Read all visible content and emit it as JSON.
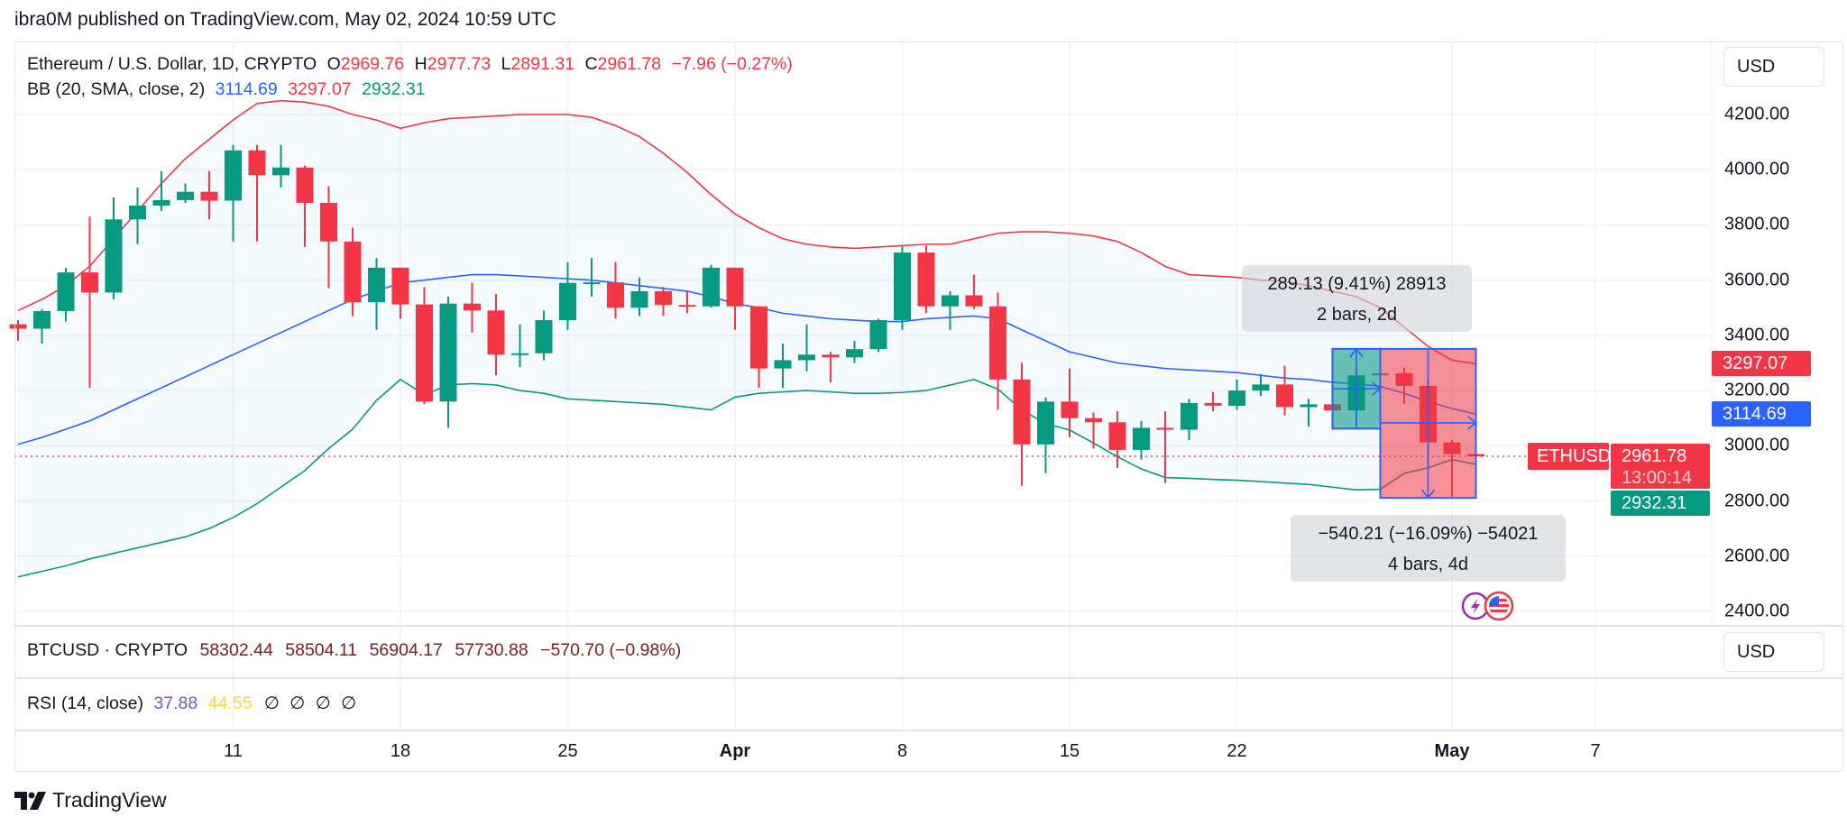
{
  "header": {
    "publisher_line": "ibra0M published on TradingView.com, May 02, 2024 10:59 UTC"
  },
  "legend": {
    "symbol": "Ethereum / U.S. Dollar, 1D, CRYPTO",
    "o_label": "O",
    "o": "2969.76",
    "h_label": "H",
    "h": "2977.73",
    "l_label": "L",
    "l": "2891.31",
    "c_label": "C",
    "c": "2961.78",
    "change": "−7.96 (−0.27%)",
    "bb_label": "BB (20, SMA, close, 2)",
    "bb_basis": "3114.69",
    "bb_upper": "3297.07",
    "bb_lower": "2932.31"
  },
  "currency_button": "USD",
  "btc_pane": {
    "label": "BTCUSD · CRYPTO",
    "open": "58302.44",
    "high": "58504.11",
    "low": "56904.17",
    "close": "57730.88",
    "change": "−570.70 (−0.98%)",
    "currency_button": "USD"
  },
  "rsi_pane": {
    "label": "RSI (14, close)",
    "rsi": "37.88",
    "ma": "44.55",
    "na": [
      "∅",
      "∅",
      "∅",
      "∅"
    ]
  },
  "price_labels": {
    "upper": "3297.07",
    "basis": "3114.69",
    "symbol": "ETHUSD",
    "last": "2961.78",
    "countdown": "13:00:14",
    "lower": "2932.31"
  },
  "measure_tooltips": [
    {
      "line1": "289.13 (9.41%) 28913",
      "line2": "2 bars, 2d"
    },
    {
      "line1": "−540.21 (−16.09%) −54021",
      "line2": "4 bars, 4d"
    }
  ],
  "footer": {
    "brand": "TradingView"
  },
  "colors": {
    "up": "#089981",
    "down": "#f23645",
    "basis": "#2962ff",
    "upper": "#f23645",
    "lower": "#089981",
    "rsi": "#7e57c2",
    "rsi_ma": "#fdd835"
  },
  "events": [
    {
      "icon": "lightning-icon"
    },
    {
      "icon": "us-flag-icon"
    }
  ],
  "chart_data": {
    "type": "candlestick",
    "title": "Ethereum / U.S. Dollar, 1D, CRYPTO",
    "start_date": "2024-03-02",
    "ylim": [
      2350,
      4300
    ],
    "y_ticks": [
      "4200.00",
      "4000.00",
      "3800.00",
      "3600.00",
      "3400.00",
      "3200.00",
      "3000.00",
      "2800.00",
      "2600.00",
      "2400.00"
    ],
    "x_ticks": [
      {
        "label": "11",
        "date": "2024-03-11",
        "bold": false
      },
      {
        "label": "18",
        "date": "2024-03-18",
        "bold": false
      },
      {
        "label": "25",
        "date": "2024-03-25",
        "bold": false
      },
      {
        "label": "Apr",
        "date": "2024-04-01",
        "bold": true
      },
      {
        "label": "8",
        "date": "2024-04-08",
        "bold": false
      },
      {
        "label": "15",
        "date": "2024-04-15",
        "bold": false
      },
      {
        "label": "22",
        "date": "2024-04-22",
        "bold": false
      },
      {
        "label": "May",
        "date": "2024-05-01",
        "bold": true
      },
      {
        "label": "7",
        "date": "2024-05-07",
        "bold": false
      }
    ],
    "grid": true,
    "ohlc": [
      [
        3440,
        3455,
        3380,
        3424
      ],
      [
        3424,
        3495,
        3370,
        3488
      ],
      [
        3488,
        3645,
        3450,
        3628
      ],
      [
        3628,
        3830,
        3210,
        3555
      ],
      [
        3555,
        3900,
        3530,
        3820
      ],
      [
        3820,
        3935,
        3730,
        3870
      ],
      [
        3870,
        3995,
        3850,
        3890
      ],
      [
        3890,
        3950,
        3880,
        3920
      ],
      [
        3920,
        3995,
        3820,
        3888
      ],
      [
        3888,
        4090,
        3740,
        4070
      ],
      [
        4070,
        4090,
        3740,
        3980
      ],
      [
        3980,
        4090,
        3935,
        4008
      ],
      [
        4008,
        4015,
        3720,
        3880
      ],
      [
        3880,
        3940,
        3570,
        3740
      ],
      [
        3740,
        3790,
        3470,
        3520
      ],
      [
        3520,
        3680,
        3420,
        3645
      ],
      [
        3645,
        3645,
        3460,
        3512
      ],
      [
        3512,
        3575,
        3150,
        3160
      ],
      [
        3160,
        3540,
        3065,
        3515
      ],
      [
        3515,
        3590,
        3410,
        3490
      ],
      [
        3490,
        3550,
        3255,
        3330
      ],
      [
        3330,
        3440,
        3285,
        3335
      ],
      [
        3335,
        3490,
        3310,
        3455
      ],
      [
        3455,
        3665,
        3420,
        3590
      ],
      [
        3590,
        3680,
        3540,
        3592
      ],
      [
        3592,
        3665,
        3460,
        3500
      ],
      [
        3500,
        3610,
        3470,
        3560
      ],
      [
        3560,
        3575,
        3470,
        3510
      ],
      [
        3510,
        3560,
        3480,
        3505
      ],
      [
        3505,
        3655,
        3500,
        3645
      ],
      [
        3645,
        3645,
        3420,
        3505
      ],
      [
        3505,
        3505,
        3210,
        3280
      ],
      [
        3280,
        3370,
        3210,
        3310
      ],
      [
        3310,
        3440,
        3270,
        3330
      ],
      [
        3330,
        3340,
        3230,
        3320
      ],
      [
        3320,
        3380,
        3300,
        3350
      ],
      [
        3350,
        3460,
        3340,
        3455
      ],
      [
        3455,
        3725,
        3420,
        3700
      ],
      [
        3700,
        3725,
        3480,
        3505
      ],
      [
        3505,
        3560,
        3420,
        3545
      ],
      [
        3545,
        3620,
        3495,
        3505
      ],
      [
        3505,
        3555,
        3130,
        3240
      ],
      [
        3240,
        3300,
        2855,
        3005
      ],
      [
        3005,
        3175,
        2900,
        3160
      ],
      [
        3160,
        3280,
        3030,
        3100
      ],
      [
        3100,
        3120,
        2990,
        3085
      ],
      [
        3085,
        3125,
        2920,
        2985
      ],
      [
        2985,
        3090,
        2950,
        3065
      ],
      [
        3065,
        3125,
        2865,
        3058
      ],
      [
        3058,
        3170,
        3020,
        3155
      ],
      [
        3155,
        3195,
        3125,
        3145
      ],
      [
        3145,
        3240,
        3130,
        3200
      ],
      [
        3200,
        3260,
        3180,
        3222
      ],
      [
        3222,
        3290,
        3110,
        3140
      ],
      [
        3140,
        3170,
        3070,
        3150
      ],
      [
        3150,
        3165,
        3100,
        3128
      ],
      [
        3128,
        3285,
        3075,
        3255
      ],
      [
        3255,
        3355,
        3240,
        3262
      ],
      [
        3263,
        3283,
        3152,
        3217
      ],
      [
        3217,
        3245,
        2915,
        3012
      ],
      [
        3012,
        3020,
        2815,
        2969.76
      ],
      [
        2969.76,
        2977.73,
        2891.31,
        2961.78
      ]
    ],
    "bb_basis": [
      3005,
      3030,
      3060,
      3090,
      3130,
      3170,
      3210,
      3250,
      3290,
      3330,
      3370,
      3410,
      3450,
      3490,
      3530,
      3560,
      3590,
      3600,
      3610,
      3620,
      3620,
      3615,
      3610,
      3605,
      3600,
      3590,
      3580,
      3570,
      3560,
      3540,
      3515,
      3500,
      3480,
      3470,
      3460,
      3455,
      3450,
      3450,
      3460,
      3465,
      3470,
      3460,
      3420,
      3380,
      3340,
      3320,
      3300,
      3290,
      3280,
      3275,
      3270,
      3265,
      3255,
      3245,
      3240,
      3230,
      3225,
      3215,
      3190,
      3160,
      3135,
      3114.69
    ],
    "bb_upper": [
      3490,
      3530,
      3580,
      3650,
      3750,
      3850,
      3950,
      4040,
      4110,
      4180,
      4240,
      4250,
      4245,
      4230,
      4200,
      4180,
      4150,
      4170,
      4185,
      4190,
      4195,
      4200,
      4200,
      4200,
      4190,
      4160,
      4120,
      4060,
      3990,
      3910,
      3840,
      3790,
      3750,
      3730,
      3720,
      3715,
      3720,
      3725,
      3730,
      3730,
      3750,
      3770,
      3775,
      3775,
      3770,
      3760,
      3740,
      3700,
      3650,
      3620,
      3615,
      3610,
      3600,
      3595,
      3580,
      3560,
      3540,
      3500,
      3430,
      3360,
      3310,
      3297.07
    ],
    "bb_lower": [
      2525,
      2545,
      2565,
      2590,
      2610,
      2630,
      2650,
      2670,
      2700,
      2740,
      2790,
      2850,
      2910,
      2990,
      3060,
      3164,
      3240,
      3185,
      3220,
      3225,
      3220,
      3200,
      3190,
      3170,
      3165,
      3160,
      3155,
      3150,
      3140,
      3130,
      3176,
      3190,
      3195,
      3200,
      3195,
      3190,
      3190,
      3193,
      3200,
      3220,
      3240,
      3205,
      3130,
      3080,
      3057,
      3010,
      2960,
      2916,
      2885,
      2882,
      2878,
      2875,
      2870,
      2865,
      2860,
      2850,
      2840,
      2842,
      2900,
      2920,
      2950,
      2932.31
    ],
    "measures": [
      {
        "kind": "up",
        "from_date": "2024-04-26",
        "to_date": "2024-04-28",
        "price_from": 3062,
        "price_to": 3351
      },
      {
        "kind": "down",
        "from_date": "2024-04-28",
        "to_date": "2024-05-02",
        "price_from": 3351,
        "price_to": 2811,
        "mid_price": 3083
      }
    ],
    "last_price": 2961.78
  }
}
